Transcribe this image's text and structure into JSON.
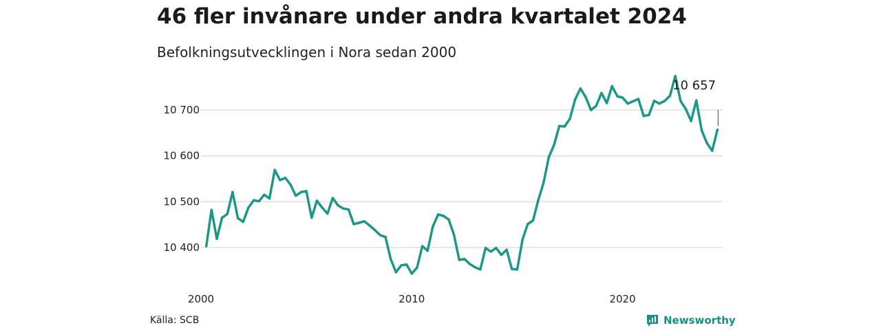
{
  "title": "46 fler invånare under andra kvartalet 2024",
  "subtitle": "Befolkningsutvecklingen i Nora sedan 2000",
  "source": "Källa: SCB",
  "brand": {
    "name": "Newsworthy",
    "icon": "newsworthy-logo-icon"
  },
  "colors": {
    "line": "#1f9786",
    "grid": "#dddddd",
    "brand": "#159184"
  },
  "chart_data": {
    "type": "line",
    "title": "46 fler invånare under andra kvartalet 2024",
    "xlabel": "",
    "ylabel": "",
    "x_ticks": [
      {
        "value": 2000,
        "label": "2000"
      },
      {
        "value": 2010,
        "label": "2010"
      },
      {
        "value": 2020,
        "label": "2020"
      }
    ],
    "y_ticks": [
      {
        "value": 10400,
        "label": "10 400"
      },
      {
        "value": 10500,
        "label": "10 500"
      },
      {
        "value": 10600,
        "label": "10 600"
      },
      {
        "value": 10700,
        "label": "10 700"
      }
    ],
    "xlim": [
      2000,
      2024.75
    ],
    "ylim": [
      10325,
      10790
    ],
    "grid": true,
    "annotation": {
      "label": "10 657",
      "x": 2024.5,
      "y": 10657
    },
    "series": [
      {
        "values": [
          [
            2000.25,
            10403
          ],
          [
            2000.5,
            10482
          ],
          [
            2000.75,
            10419
          ],
          [
            2001.0,
            10465
          ],
          [
            2001.25,
            10473
          ],
          [
            2001.5,
            10521
          ],
          [
            2001.75,
            10464
          ],
          [
            2002.0,
            10456
          ],
          [
            2002.25,
            10487
          ],
          [
            2002.5,
            10503
          ],
          [
            2002.75,
            10501
          ],
          [
            2003.0,
            10515
          ],
          [
            2003.25,
            10507
          ],
          [
            2003.5,
            10569
          ],
          [
            2003.75,
            10547
          ],
          [
            2004.0,
            10552
          ],
          [
            2004.25,
            10537
          ],
          [
            2004.5,
            10513
          ],
          [
            2004.75,
            10521
          ],
          [
            2005.0,
            10523
          ],
          [
            2005.25,
            10465
          ],
          [
            2005.5,
            10502
          ],
          [
            2005.75,
            10487
          ],
          [
            2006.0,
            10474
          ],
          [
            2006.25,
            10508
          ],
          [
            2006.5,
            10492
          ],
          [
            2006.75,
            10485
          ],
          [
            2007.0,
            10483
          ],
          [
            2007.25,
            10451
          ],
          [
            2007.5,
            10454
          ],
          [
            2007.75,
            10457
          ],
          [
            2008.0,
            10448
          ],
          [
            2008.25,
            10438
          ],
          [
            2008.5,
            10427
          ],
          [
            2008.75,
            10423
          ],
          [
            2009.0,
            10375
          ],
          [
            2009.25,
            10346
          ],
          [
            2009.5,
            10361
          ],
          [
            2009.75,
            10363
          ],
          [
            2010.0,
            10343
          ],
          [
            2010.25,
            10356
          ],
          [
            2010.5,
            10403
          ],
          [
            2010.75,
            10393
          ],
          [
            2011.0,
            10446
          ],
          [
            2011.25,
            10472
          ],
          [
            2011.5,
            10469
          ],
          [
            2011.75,
            10461
          ],
          [
            2012.0,
            10428
          ],
          [
            2012.25,
            10373
          ],
          [
            2012.5,
            10375
          ],
          [
            2012.75,
            10364
          ],
          [
            2013.0,
            10357
          ],
          [
            2013.25,
            10352
          ],
          [
            2013.5,
            10399
          ],
          [
            2013.75,
            10391
          ],
          [
            2014.0,
            10399
          ],
          [
            2014.25,
            10384
          ],
          [
            2014.5,
            10395
          ],
          [
            2014.75,
            10353
          ],
          [
            2015.0,
            10352
          ],
          [
            2015.25,
            10417
          ],
          [
            2015.5,
            10451
          ],
          [
            2015.75,
            10459
          ],
          [
            2016.0,
            10503
          ],
          [
            2016.25,
            10541
          ],
          [
            2016.5,
            10597
          ],
          [
            2016.75,
            10624
          ],
          [
            2017.0,
            10665
          ],
          [
            2017.25,
            10664
          ],
          [
            2017.5,
            10681
          ],
          [
            2017.75,
            10723
          ],
          [
            2018.0,
            10747
          ],
          [
            2018.25,
            10728
          ],
          [
            2018.5,
            10700
          ],
          [
            2018.75,
            10709
          ],
          [
            2019.0,
            10737
          ],
          [
            2019.25,
            10715
          ],
          [
            2019.5,
            10752
          ],
          [
            2019.75,
            10730
          ],
          [
            2020.0,
            10727
          ],
          [
            2020.25,
            10714
          ],
          [
            2020.5,
            10719
          ],
          [
            2020.75,
            10724
          ],
          [
            2021.0,
            10687
          ],
          [
            2021.25,
            10689
          ],
          [
            2021.5,
            10720
          ],
          [
            2021.75,
            10714
          ],
          [
            2022.0,
            10720
          ],
          [
            2022.25,
            10731
          ],
          [
            2022.5,
            10774
          ],
          [
            2022.75,
            10720
          ],
          [
            2023.0,
            10702
          ],
          [
            2023.25,
            10676
          ],
          [
            2023.5,
            10721
          ],
          [
            2023.75,
            10656
          ],
          [
            2024.0,
            10628
          ],
          [
            2024.25,
            10611
          ],
          [
            2024.5,
            10657
          ]
        ]
      }
    ]
  }
}
